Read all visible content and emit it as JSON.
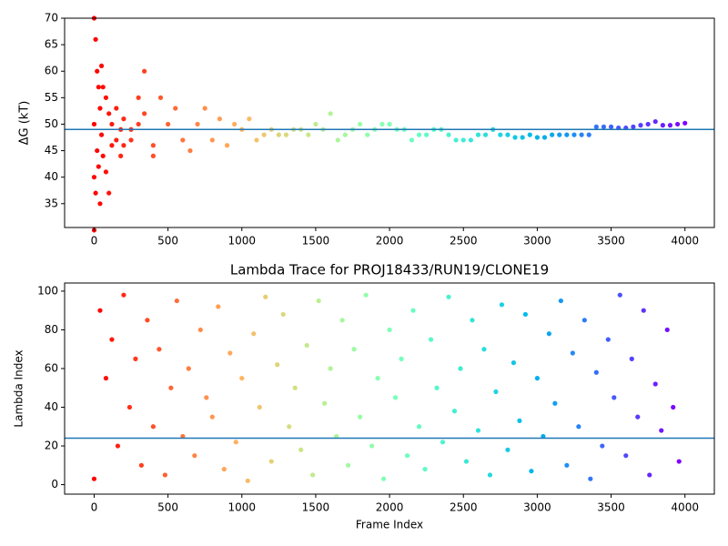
{
  "chart_data": [
    {
      "type": "scatter",
      "y_label": "ΔG (kT)",
      "colormap": "rainbow",
      "hline": 49,
      "hline_color": "#1f77b4",
      "xlim": [
        -200,
        4199
      ],
      "ylim": [
        30.5,
        70
      ],
      "xticks": [
        0,
        500,
        1000,
        1500,
        2000,
        2500,
        3000,
        3500,
        4000
      ],
      "yticks": [
        35,
        40,
        45,
        50,
        55,
        60,
        65,
        70
      ],
      "x": [
        0,
        0,
        0,
        0,
        10,
        10,
        20,
        20,
        30,
        30,
        40,
        40,
        50,
        50,
        60,
        60,
        80,
        80,
        100,
        100,
        120,
        120,
        150,
        150,
        180,
        180,
        200,
        200,
        250,
        250,
        300,
        300,
        340,
        340,
        400,
        400,
        450,
        500,
        550,
        600,
        650,
        700,
        750,
        800,
        850,
        900,
        950,
        1000,
        1050,
        1100,
        1150,
        1200,
        1250,
        1300,
        1350,
        1400,
        1450,
        1500,
        1550,
        1600,
        1650,
        1700,
        1750,
        1800,
        1850,
        1900,
        1950,
        2000,
        2050,
        2100,
        2150,
        2200,
        2250,
        2300,
        2350,
        2400,
        2450,
        2500,
        2550,
        2600,
        2650,
        2700,
        2750,
        2800,
        2850,
        2900,
        2950,
        3000,
        3050,
        3100,
        3150,
        3200,
        3250,
        3300,
        3350,
        3400,
        3450,
        3500,
        3550,
        3600,
        3650,
        3700,
        3750,
        3800,
        3850,
        3900,
        3950,
        4000
      ],
      "y": [
        70,
        30,
        50,
        40,
        66,
        37,
        60,
        45,
        57,
        42,
        53,
        35,
        61,
        48,
        57,
        44,
        55,
        41,
        52,
        37,
        50,
        46,
        53,
        47,
        49,
        44,
        51,
        46,
        49,
        47,
        55,
        50,
        60,
        52,
        46,
        44,
        55,
        50,
        53,
        47,
        45,
        50,
        53,
        47,
        51,
        46,
        50,
        49,
        51,
        47,
        48,
        49,
        48,
        48,
        49,
        49,
        48,
        50,
        49,
        52,
        47,
        48,
        49,
        50,
        48,
        49,
        50,
        50,
        49,
        49,
        47,
        48,
        48,
        49,
        49,
        48,
        47,
        47,
        47,
        48,
        48,
        49,
        48,
        48,
        47.5,
        47.5,
        48,
        47.5,
        47.5,
        48,
        48,
        48,
        48,
        48,
        48,
        49.5,
        49.5,
        49.5,
        49.3,
        49.3,
        49.5,
        49.8,
        50,
        50.5,
        49.8,
        49.8,
        50,
        50.2
      ]
    },
    {
      "type": "scatter",
      "title": "Lambda Trace for PROJ18433/RUN19/CLONE19",
      "x_label": "Frame Index",
      "y_label": "Lambda Index",
      "colormap": "rainbow",
      "hline": 24,
      "hline_color": "#1f77b4",
      "xlim": [
        -200,
        4199
      ],
      "ylim": [
        -4.9,
        104.2
      ],
      "xticks": [
        0,
        500,
        1000,
        1500,
        2000,
        2500,
        3000,
        3500,
        4000
      ],
      "yticks": [
        0,
        20,
        40,
        60,
        80,
        100
      ],
      "x": [
        0,
        40,
        80,
        120,
        160,
        200,
        240,
        280,
        320,
        360,
        400,
        440,
        480,
        520,
        560,
        600,
        640,
        680,
        720,
        760,
        800,
        840,
        880,
        920,
        960,
        1000,
        1040,
        1080,
        1120,
        1160,
        1200,
        1240,
        1280,
        1320,
        1360,
        1400,
        1440,
        1480,
        1520,
        1560,
        1600,
        1640,
        1680,
        1720,
        1760,
        1800,
        1840,
        1880,
        1920,
        1960,
        2000,
        2040,
        2080,
        2120,
        2160,
        2200,
        2240,
        2280,
        2320,
        2360,
        2400,
        2440,
        2480,
        2520,
        2560,
        2600,
        2640,
        2680,
        2720,
        2760,
        2800,
        2840,
        2880,
        2920,
        2960,
        3000,
        3040,
        3080,
        3120,
        3160,
        3200,
        3240,
        3280,
        3320,
        3360,
        3400,
        3440,
        3480,
        3520,
        3560,
        3600,
        3640,
        3680,
        3720,
        3760,
        3800,
        3840,
        3880,
        3920,
        3960
      ],
      "y": [
        3,
        90,
        55,
        75,
        20,
        98,
        40,
        65,
        10,
        85,
        30,
        70,
        5,
        50,
        95,
        25,
        60,
        15,
        80,
        45,
        35,
        92,
        8,
        68,
        22,
        55,
        2,
        78,
        40,
        97,
        12,
        62,
        88,
        30,
        50,
        18,
        72,
        5,
        95,
        42,
        60,
        25,
        85,
        10,
        70,
        35,
        98,
        20,
        55,
        3,
        80,
        45,
        65,
        15,
        90,
        30,
        8,
        75,
        50,
        22,
        97,
        38,
        60,
        12,
        85,
        28,
        70,
        5,
        48,
        93,
        18,
        63,
        33,
        88,
        7,
        55,
        25,
        78,
        42,
        95,
        10,
        68,
        30,
        85,
        3,
        58,
        20,
        75,
        45,
        98,
        15,
        65,
        35,
        90,
        5,
        52,
        28,
        80,
        40,
        12
      ]
    }
  ]
}
